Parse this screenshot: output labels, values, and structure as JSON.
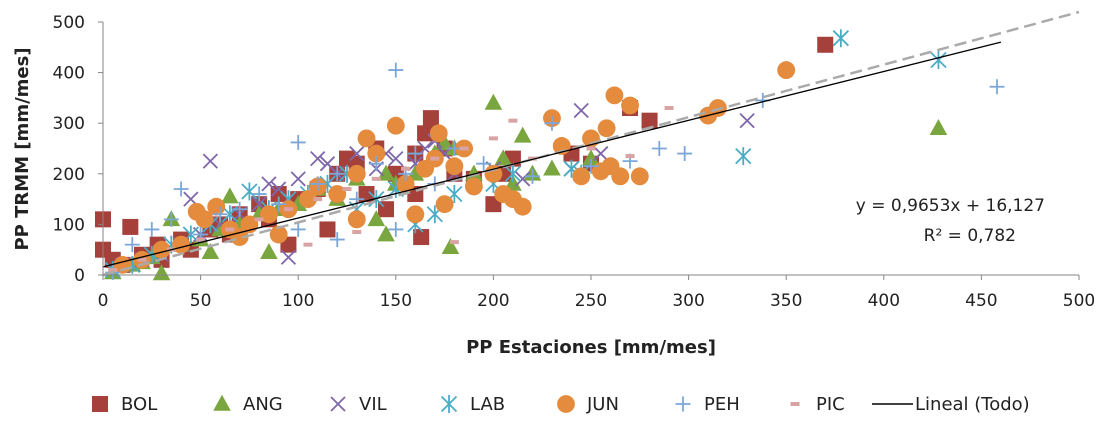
{
  "chart_data": {
    "type": "scatter",
    "title": "",
    "xlabel": "PP Estaciones [mm/mes]",
    "ylabel": "PP TRMM [mm/mes]",
    "xlim": [
      0,
      500
    ],
    "ylim": [
      0,
      500
    ],
    "xticks": [
      "0",
      "50",
      "100",
      "150",
      "200",
      "250",
      "300",
      "350",
      "400",
      "450",
      "500"
    ],
    "yticks": [
      "0",
      "100",
      "200",
      "300",
      "400",
      "500"
    ],
    "grid": false,
    "legend_position": "bottom",
    "trendline": {
      "name": "Lineal (Todo)",
      "slope": 0.9653,
      "intercept": 16.127,
      "x_range": [
        0,
        460
      ],
      "equation_label": "y = 0,9653x + 16,127",
      "r2_label": "R² = 0,782",
      "color": "#000000"
    },
    "identity_line": {
      "style": "dashed",
      "color": "#aaaaaa",
      "x_range": [
        0,
        500
      ]
    },
    "series": [
      {
        "name": "BOL",
        "marker": "square",
        "color": "#a5403b",
        "points": [
          [
            0,
            110
          ],
          [
            0,
            50
          ],
          [
            14,
            95
          ],
          [
            5,
            30
          ],
          [
            10,
            20
          ],
          [
            20,
            40
          ],
          [
            28,
            60
          ],
          [
            40,
            70
          ],
          [
            55,
            90
          ],
          [
            60,
            100
          ],
          [
            70,
            120
          ],
          [
            80,
            140
          ],
          [
            90,
            160
          ],
          [
            100,
            150
          ],
          [
            110,
            170
          ],
          [
            120,
            200
          ],
          [
            125,
            230
          ],
          [
            130,
            220
          ],
          [
            140,
            250
          ],
          [
            150,
            200
          ],
          [
            160,
            240
          ],
          [
            165,
            280
          ],
          [
            168,
            310
          ],
          [
            160,
            160
          ],
          [
            163,
            75
          ],
          [
            175,
            250
          ],
          [
            180,
            200
          ],
          [
            190,
            190
          ],
          [
            200,
            140
          ],
          [
            205,
            200
          ],
          [
            210,
            230
          ],
          [
            240,
            240
          ],
          [
            250,
            220
          ],
          [
            270,
            330
          ],
          [
            280,
            305
          ],
          [
            370,
            455
          ],
          [
            30,
            30
          ],
          [
            45,
            50
          ],
          [
            65,
            80
          ],
          [
            85,
            110
          ],
          [
            95,
            60
          ],
          [
            115,
            90
          ],
          [
            135,
            160
          ],
          [
            145,
            130
          ]
        ]
      },
      {
        "name": "ANG",
        "marker": "triangle",
        "color": "#7aa63f",
        "points": [
          [
            5,
            5
          ],
          [
            15,
            20
          ],
          [
            20,
            25
          ],
          [
            30,
            3
          ],
          [
            35,
            110
          ],
          [
            40,
            60
          ],
          [
            50,
            70
          ],
          [
            60,
            90
          ],
          [
            65,
            155
          ],
          [
            70,
            100
          ],
          [
            80,
            120
          ],
          [
            85,
            45
          ],
          [
            90,
            130
          ],
          [
            100,
            140
          ],
          [
            110,
            170
          ],
          [
            120,
            150
          ],
          [
            130,
            190
          ],
          [
            140,
            110
          ],
          [
            145,
            200
          ],
          [
            150,
            180
          ],
          [
            160,
            200
          ],
          [
            170,
            240
          ],
          [
            175,
            260
          ],
          [
            178,
            55
          ],
          [
            180,
            250
          ],
          [
            190,
            200
          ],
          [
            200,
            340
          ],
          [
            205,
            230
          ],
          [
            210,
            180
          ],
          [
            215,
            275
          ],
          [
            220,
            200
          ],
          [
            230,
            210
          ],
          [
            250,
            230
          ],
          [
            428,
            290
          ],
          [
            145,
            80
          ],
          [
            25,
            35
          ],
          [
            55,
            45
          ]
        ]
      },
      {
        "name": "VIL",
        "marker": "x",
        "color": "#7f66a8",
        "points": [
          [
            10,
            20
          ],
          [
            20,
            30
          ],
          [
            30,
            40
          ],
          [
            40,
            60
          ],
          [
            45,
            150
          ],
          [
            50,
            80
          ],
          [
            55,
            225
          ],
          [
            60,
            100
          ],
          [
            70,
            120
          ],
          [
            80,
            140
          ],
          [
            85,
            180
          ],
          [
            90,
            170
          ],
          [
            100,
            190
          ],
          [
            110,
            230
          ],
          [
            115,
            220
          ],
          [
            120,
            200
          ],
          [
            130,
            240
          ],
          [
            140,
            210
          ],
          [
            145,
            240
          ],
          [
            150,
            230
          ],
          [
            160,
            220
          ],
          [
            165,
            250
          ],
          [
            170,
            265
          ],
          [
            175,
            240
          ],
          [
            180,
            200
          ],
          [
            200,
            210
          ],
          [
            215,
            190
          ],
          [
            240,
            210
          ],
          [
            245,
            325
          ],
          [
            255,
            240
          ],
          [
            330,
            305
          ],
          [
            95,
            35
          ]
        ]
      },
      {
        "name": "LAB",
        "marker": "asterisk",
        "color": "#4bacc6",
        "points": [
          [
            5,
            10
          ],
          [
            15,
            20
          ],
          [
            25,
            40
          ],
          [
            35,
            60
          ],
          [
            45,
            80
          ],
          [
            55,
            100
          ],
          [
            65,
            120
          ],
          [
            75,
            165
          ],
          [
            85,
            130
          ],
          [
            95,
            150
          ],
          [
            105,
            160
          ],
          [
            115,
            180
          ],
          [
            125,
            200
          ],
          [
            130,
            130
          ],
          [
            140,
            150
          ],
          [
            150,
            170
          ],
          [
            160,
            100
          ],
          [
            170,
            120
          ],
          [
            180,
            160
          ],
          [
            200,
            180
          ],
          [
            210,
            200
          ],
          [
            240,
            210
          ],
          [
            245,
            200
          ],
          [
            328,
            235
          ],
          [
            378,
            468
          ],
          [
            428,
            425
          ]
        ]
      },
      {
        "name": "JUN",
        "marker": "circle",
        "color": "#e48b3d",
        "points": [
          [
            10,
            20
          ],
          [
            20,
            30
          ],
          [
            30,
            50
          ],
          [
            40,
            60
          ],
          [
            48,
            125
          ],
          [
            52,
            110
          ],
          [
            58,
            135
          ],
          [
            65,
            90
          ],
          [
            75,
            100
          ],
          [
            85,
            120
          ],
          [
            95,
            130
          ],
          [
            105,
            150
          ],
          [
            110,
            175
          ],
          [
            120,
            160
          ],
          [
            130,
            200
          ],
          [
            135,
            270
          ],
          [
            140,
            240
          ],
          [
            150,
            295
          ],
          [
            155,
            180
          ],
          [
            165,
            210
          ],
          [
            170,
            230
          ],
          [
            172,
            280
          ],
          [
            175,
            140
          ],
          [
            180,
            215
          ],
          [
            185,
            250
          ],
          [
            190,
            175
          ],
          [
            200,
            200
          ],
          [
            205,
            160
          ],
          [
            210,
            150
          ],
          [
            215,
            135
          ],
          [
            230,
            310
          ],
          [
            235,
            255
          ],
          [
            245,
            195
          ],
          [
            250,
            270
          ],
          [
            255,
            205
          ],
          [
            258,
            290
          ],
          [
            260,
            215
          ],
          [
            262,
            355
          ],
          [
            265,
            195
          ],
          [
            270,
            335
          ],
          [
            275,
            195
          ],
          [
            310,
            315
          ],
          [
            315,
            330
          ],
          [
            350,
            405
          ],
          [
            160,
            120
          ],
          [
            130,
            110
          ],
          [
            90,
            80
          ],
          [
            70,
            75
          ]
        ]
      },
      {
        "name": "PEH",
        "marker": "plus",
        "color": "#7ba7d8",
        "points": [
          [
            5,
            5
          ],
          [
            15,
            60
          ],
          [
            25,
            90
          ],
          [
            35,
            110
          ],
          [
            40,
            170
          ],
          [
            50,
            80
          ],
          [
            60,
            120
          ],
          [
            70,
            130
          ],
          [
            80,
            160
          ],
          [
            90,
            140
          ],
          [
            100,
            262
          ],
          [
            110,
            180
          ],
          [
            120,
            200
          ],
          [
            130,
            150
          ],
          [
            140,
            220
          ],
          [
            150,
            405
          ],
          [
            155,
            200
          ],
          [
            160,
            240
          ],
          [
            170,
            180
          ],
          [
            180,
            250
          ],
          [
            195,
            220
          ],
          [
            220,
            195
          ],
          [
            230,
            300
          ],
          [
            250,
            215
          ],
          [
            270,
            225
          ],
          [
            285,
            250
          ],
          [
            298,
            240
          ],
          [
            338,
            345
          ],
          [
            458,
            372
          ],
          [
            120,
            70
          ],
          [
            150,
            90
          ],
          [
            100,
            90
          ]
        ]
      },
      {
        "name": "PIC",
        "marker": "dash",
        "color": "#d9a3a3",
        "points": [
          [
            5,
            10
          ],
          [
            20,
            30
          ],
          [
            35,
            50
          ],
          [
            50,
            70
          ],
          [
            65,
            90
          ],
          [
            80,
            110
          ],
          [
            95,
            130
          ],
          [
            110,
            150
          ],
          [
            125,
            170
          ],
          [
            140,
            190
          ],
          [
            155,
            210
          ],
          [
            170,
            230
          ],
          [
            180,
            65
          ],
          [
            185,
            250
          ],
          [
            200,
            270
          ],
          [
            210,
            305
          ],
          [
            220,
            230
          ],
          [
            250,
            250
          ],
          [
            270,
            235
          ],
          [
            290,
            330
          ],
          [
            105,
            60
          ],
          [
            130,
            85
          ]
        ]
      }
    ]
  }
}
